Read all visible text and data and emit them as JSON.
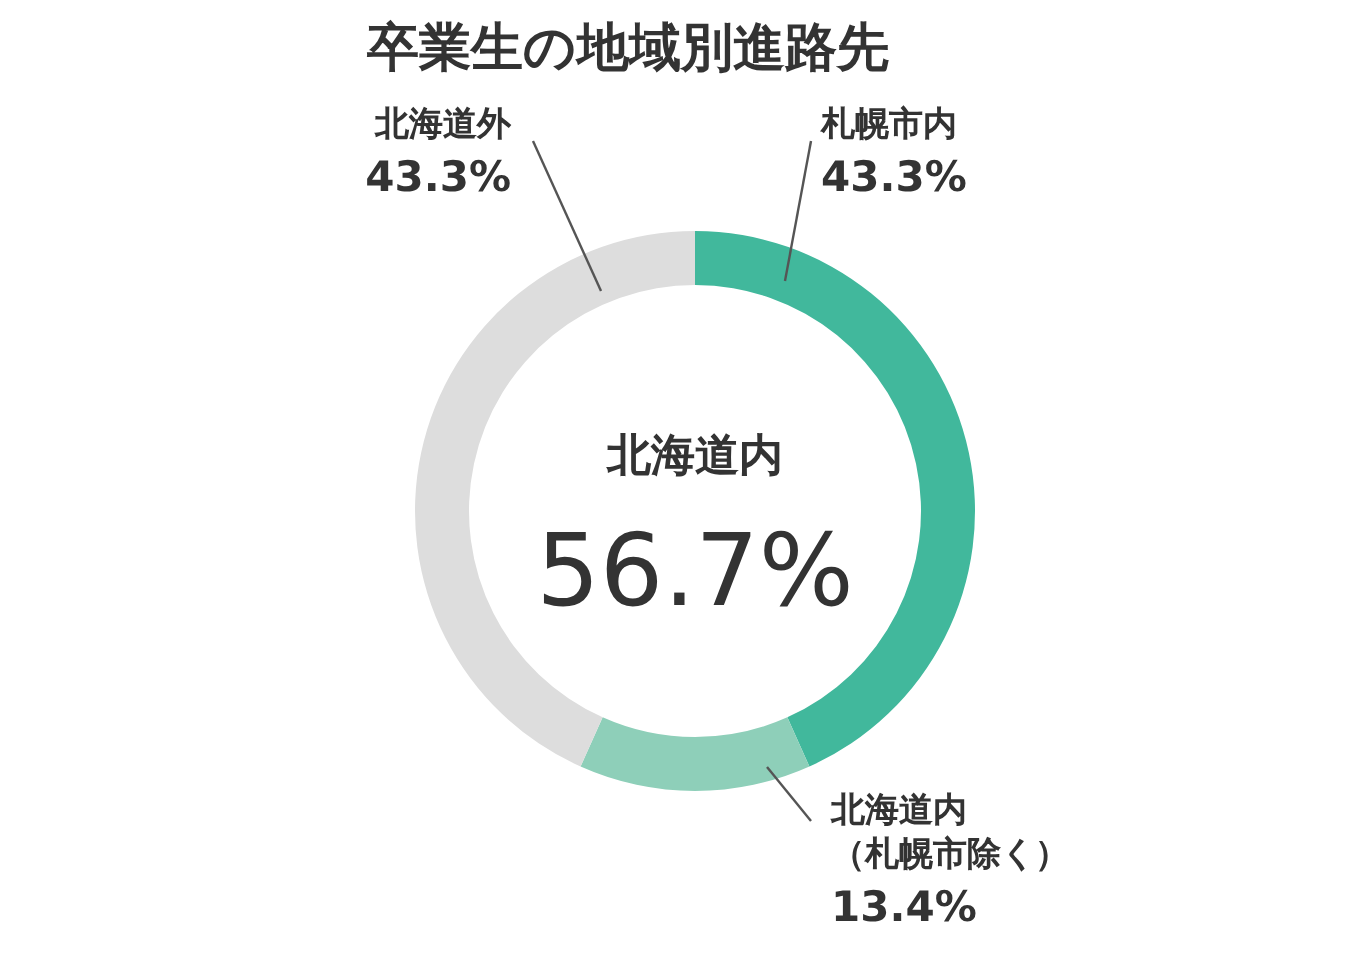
{
  "chart_data": {
    "type": "donut",
    "title": "卒業生の地域別進路先",
    "categories": [
      "札幌市内",
      "北海道内（札幌市除く）",
      "北海道外"
    ],
    "values": [
      43.3,
      13.4,
      43.3
    ],
    "colors": [
      "#41b89c",
      "#8ecfb9",
      "#dddddd"
    ],
    "value_labels": [
      "43.3%",
      "13.4%",
      "43.3%"
    ],
    "annotations": [
      "北海道内",
      "56.7%"
    ]
  }
}
